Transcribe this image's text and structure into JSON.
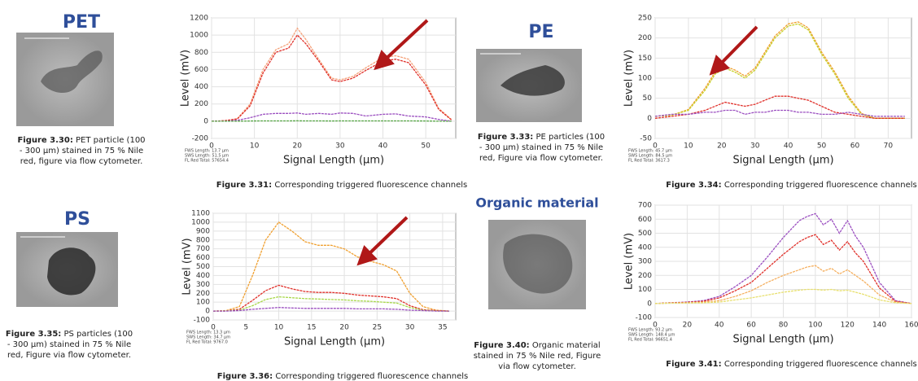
{
  "particles": [
    {
      "title": "PET",
      "caption": {
        "label": "Figure 3.30:",
        "lines": [
          "PET particle (100",
          "- 300 µm) stained in 75 % Nile",
          "red, figure via flow cytometer."
        ]
      }
    },
    {
      "title": "PE",
      "caption": {
        "label": "Figure 3.33:",
        "lines": [
          "PE particles (100",
          "- 300 µm) stained in 75 % Nile",
          "red, Figure via flow cytometer."
        ]
      }
    },
    {
      "title": "PS",
      "caption": {
        "label": "Figure 3.35:",
        "lines": [
          "PS particles (100",
          "- 300 µm) stained in 75 % Nile",
          "red, Figure via flow cytometer."
        ]
      }
    },
    {
      "title": "Organic material",
      "caption": {
        "label": "Figure 3.40:",
        "lines": [
          "Organic material",
          "stained in 75 % Nile red, Figure",
          "via flow cytometer."
        ]
      }
    }
  ],
  "chart_data": [
    {
      "type": "line",
      "ylabel": "Level (mV)",
      "xlabel": "Signal Length (µm)",
      "grid": true,
      "caption": {
        "label": "Figure 3.31:",
        "text": "Corresponding triggered fluorescence channels"
      },
      "notes": [
        "FWS Length: 13.7 µm",
        "SWS Length: 51.5 µm",
        "FL Red Total: 57654.4"
      ],
      "xlim": [
        0,
        57
      ],
      "xticks": [
        0,
        10,
        20,
        30,
        40,
        50
      ],
      "ylim": [
        -200,
        1200
      ],
      "yticks": [
        -200,
        0,
        200,
        400,
        600,
        800,
        1000,
        1200
      ],
      "x": [
        0,
        3,
        6,
        9,
        12,
        15,
        18,
        20,
        22,
        25,
        28,
        30,
        33,
        36,
        40,
        43,
        46,
        50,
        53,
        56
      ],
      "series": [
        {
          "color": "#f5a27a",
          "values": [
            0,
            5,
            30,
            200,
            600,
            830,
            900,
            1080,
            950,
            720,
            500,
            480,
            520,
            620,
            740,
            760,
            720,
            450,
            150,
            20
          ]
        },
        {
          "color": "#e0302a",
          "values": [
            0,
            5,
            25,
            180,
            560,
            800,
            850,
            1000,
            900,
            700,
            480,
            460,
            500,
            590,
            700,
            720,
            680,
            420,
            140,
            15
          ]
        },
        {
          "color": "#9b4fc0",
          "values": [
            0,
            0,
            10,
            40,
            80,
            90,
            90,
            95,
            80,
            90,
            80,
            95,
            90,
            60,
            80,
            85,
            60,
            50,
            20,
            0
          ]
        },
        {
          "color": "#5aa84a",
          "values": [
            0,
            0,
            0,
            2,
            3,
            3,
            3,
            4,
            3,
            3,
            2,
            3,
            3,
            3,
            3,
            3,
            3,
            2,
            0,
            0
          ]
        }
      ]
    },
    {
      "type": "line",
      "ylabel": "Level (mV)",
      "xlabel": "Signal Length (µm)",
      "grid": true,
      "caption": {
        "label": "Figure 3.34:",
        "text": "Corresponding triggered fluorescence channels"
      },
      "notes": [
        "FWS Length: 45.7 µm",
        "SWS Length: 84.5 µm",
        "FL Red Total: 3617.3"
      ],
      "xlim": [
        0,
        77
      ],
      "xticks": [
        0,
        10,
        20,
        30,
        40,
        50,
        60,
        70
      ],
      "ylim": [
        -50,
        250
      ],
      "yticks": [
        -50,
        0,
        50,
        100,
        150,
        200,
        250
      ],
      "x": [
        0,
        5,
        10,
        15,
        18,
        21,
        24,
        27,
        30,
        33,
        36,
        40,
        43,
        46,
        50,
        54,
        58,
        62,
        66,
        70,
        75
      ],
      "series": [
        {
          "color": "#f0a030",
          "values": [
            5,
            8,
            22,
            75,
            115,
            130,
            120,
            105,
            125,
            165,
            205,
            235,
            240,
            225,
            165,
            115,
            55,
            12,
            0,
            0,
            0
          ]
        },
        {
          "color": "#c8d02a",
          "values": [
            5,
            8,
            20,
            70,
            110,
            125,
            115,
            100,
            120,
            160,
            200,
            230,
            235,
            220,
            160,
            110,
            50,
            10,
            0,
            0,
            0
          ]
        },
        {
          "color": "#e0302a",
          "values": [
            0,
            5,
            10,
            20,
            30,
            40,
            35,
            30,
            35,
            45,
            55,
            55,
            50,
            45,
            30,
            15,
            10,
            5,
            0,
            0,
            0
          ]
        },
        {
          "color": "#9b4fc0",
          "values": [
            5,
            10,
            10,
            15,
            15,
            20,
            20,
            10,
            15,
            15,
            20,
            20,
            15,
            15,
            10,
            10,
            15,
            10,
            5,
            5,
            5
          ]
        }
      ]
    },
    {
      "type": "line",
      "ylabel": "Level (mV)",
      "xlabel": "Signal Length (µm)",
      "grid": true,
      "caption": {
        "label": "Figure 3.36:",
        "text": "Corresponding triggered fluorescence channels"
      },
      "notes": [
        "FWS Length: 13.3 µm",
        "SWS Length: 34.7 µm",
        "FL Red Total: 9767.0"
      ],
      "xlim": [
        0,
        37
      ],
      "xticks": [
        0,
        5,
        10,
        15,
        20,
        25,
        30,
        35
      ],
      "ylim": [
        -100,
        1100
      ],
      "yticks": [
        -100,
        0,
        100,
        200,
        300,
        400,
        500,
        600,
        700,
        800,
        900,
        1000,
        1100
      ],
      "x": [
        0,
        2,
        4,
        6,
        8,
        10,
        12,
        14,
        16,
        18,
        20,
        22,
        24,
        26,
        28,
        30,
        32,
        34,
        36
      ],
      "series": [
        {
          "color": "#f0a030",
          "values": [
            0,
            5,
            50,
            400,
            800,
            1000,
            900,
            780,
            740,
            740,
            700,
            610,
            560,
            520,
            450,
            200,
            50,
            10,
            0
          ]
        },
        {
          "color": "#e0302a",
          "values": [
            0,
            2,
            20,
            120,
            230,
            290,
            250,
            220,
            210,
            210,
            200,
            180,
            170,
            160,
            140,
            60,
            15,
            5,
            0
          ]
        },
        {
          "color": "#a8d84a",
          "values": [
            0,
            2,
            10,
            60,
            130,
            160,
            150,
            140,
            135,
            130,
            125,
            115,
            110,
            100,
            90,
            40,
            10,
            2,
            0
          ]
        },
        {
          "color": "#9b4fc0",
          "values": [
            0,
            0,
            5,
            20,
            30,
            40,
            35,
            30,
            30,
            30,
            30,
            25,
            25,
            25,
            20,
            10,
            5,
            0,
            0
          ]
        }
      ]
    },
    {
      "type": "line",
      "ylabel": "Level (mV)",
      "xlabel": "Signal Length (µm)",
      "grid": true,
      "caption": {
        "label": "Figure 3.41:",
        "text": "Corresponding triggered fluorescence channels"
      },
      "notes": [
        "FWS Length: 93.2 µm",
        "SWS Length: 148.4 µm",
        "FL Red Total: 96651.4"
      ],
      "xlim": [
        0,
        160
      ],
      "xticks": [
        0,
        20,
        40,
        60,
        80,
        100,
        120,
        140,
        160
      ],
      "ylim": [
        -100,
        700
      ],
      "yticks": [
        -100,
        0,
        100,
        200,
        300,
        400,
        500,
        600,
        700
      ],
      "x": [
        0,
        10,
        20,
        30,
        40,
        50,
        60,
        70,
        80,
        90,
        95,
        100,
        105,
        110,
        115,
        120,
        125,
        130,
        140,
        150,
        160
      ],
      "series": [
        {
          "color": "#9b4fc0",
          "values": [
            0,
            5,
            10,
            20,
            50,
            120,
            200,
            330,
            470,
            590,
            620,
            640,
            560,
            600,
            500,
            590,
            480,
            400,
            150,
            20,
            0
          ]
        },
        {
          "color": "#e0302a",
          "values": [
            0,
            5,
            8,
            15,
            40,
            90,
            150,
            250,
            350,
            440,
            470,
            490,
            420,
            450,
            380,
            440,
            360,
            300,
            110,
            15,
            0
          ]
        },
        {
          "color": "#f5b060",
          "values": [
            0,
            3,
            5,
            10,
            20,
            50,
            90,
            150,
            200,
            240,
            260,
            270,
            230,
            250,
            210,
            240,
            200,
            160,
            60,
            10,
            0
          ]
        },
        {
          "color": "#e8e070",
          "values": [
            0,
            2,
            3,
            5,
            10,
            25,
            40,
            60,
            80,
            95,
            100,
            100,
            95,
            100,
            90,
            95,
            80,
            65,
            25,
            5,
            0
          ]
        }
      ]
    }
  ]
}
